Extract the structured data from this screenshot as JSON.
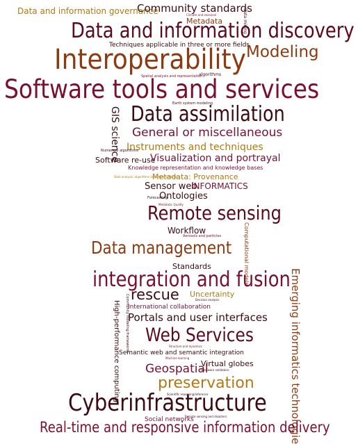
{
  "colors": {
    "dark": "#3b0a12",
    "maroon": "#7a1030",
    "brown": "#8c3a10",
    "gold": "#b07a12",
    "darkred": "#5a0a1c"
  },
  "words": [
    {
      "text": "Data and information governance",
      "color": "#b07a12"
    },
    {
      "text": "Community standards",
      "color": "#3b0a12"
    },
    {
      "text": "Metadata",
      "color": "#8c3a10"
    },
    {
      "text": "Data and information discovery",
      "color": "#5a0a1c"
    },
    {
      "text": "Techniques applicable in three or more fields",
      "color": "#3b0a12"
    },
    {
      "text": "Interoperability",
      "color": "#8c3a10"
    },
    {
      "text": "Modeling",
      "color": "#8c3a10"
    },
    {
      "text": "Software tools and services",
      "color": "#7a1030"
    },
    {
      "text": "Data assimilation",
      "color": "#3b0a12"
    },
    {
      "text": "GIS science",
      "color": "#3b0a12"
    },
    {
      "text": "General or miscellaneous",
      "color": "#7a1030"
    },
    {
      "text": "Instruments and techniques",
      "color": "#b07a12"
    },
    {
      "text": "Software re-use",
      "color": "#3b0a12"
    },
    {
      "text": "Visualization and portrayal",
      "color": "#7a1030"
    },
    {
      "text": "Knowledge representation and knowledge bases",
      "color": "#7a1030"
    },
    {
      "text": "Metadata: Provenance",
      "color": "#b07a12"
    },
    {
      "text": "Sensor web",
      "color": "#3b0a12"
    },
    {
      "text": "INFORMATICS",
      "color": "#7a1030"
    },
    {
      "text": "Ontologies",
      "color": "#3b0a12"
    },
    {
      "text": "Remote sensing",
      "color": "#5a0a1c"
    },
    {
      "text": "Workflow",
      "color": "#3b0a12"
    },
    {
      "text": "Computational models",
      "color": "#8c3a10"
    },
    {
      "text": "Data management",
      "color": "#8c3a10"
    },
    {
      "text": "Standards",
      "color": "#3b0a12"
    },
    {
      "text": "integration and fusion",
      "color": "#7a1030"
    },
    {
      "text": "Emerging informatics technologies",
      "color": "#8c3a10"
    },
    {
      "text": "rescue",
      "color": "#3b0a12"
    },
    {
      "text": "Uncertainty",
      "color": "#b07a12"
    },
    {
      "text": "International collaboration",
      "color": "#7a1030"
    },
    {
      "text": "High-performance computing",
      "color": "#3b0a12"
    },
    {
      "text": "Portals and user interfaces",
      "color": "#3b0a12"
    },
    {
      "text": "Web Services",
      "color": "#5a0a1c"
    },
    {
      "text": "Semantic web and semantic integration",
      "color": "#3b0a12"
    },
    {
      "text": "Geospatial",
      "color": "#7a1030"
    },
    {
      "text": "Virtual globes",
      "color": "#3b0a12"
    },
    {
      "text": "preservation",
      "color": "#b07a12"
    },
    {
      "text": "Cyberinfrastructure",
      "color": "#3b0a12"
    },
    {
      "text": "Social networks",
      "color": "#7a1030"
    },
    {
      "text": "Real-time and responsive information delivery",
      "color": "#7a1030"
    },
    {
      "text": "Data mining",
      "color": "#3b0a12"
    },
    {
      "text": "Spatial analysis and representation",
      "color": "#7a1030"
    },
    {
      "text": "algorithms",
      "color": "#3b0a12"
    },
    {
      "text": "Earth system modeling",
      "color": "#3b0a12"
    },
    {
      "text": "Numerical algorithms",
      "color": "#3b0a12"
    },
    {
      "text": "Forecasting",
      "color": "#3b0a12"
    },
    {
      "text": "Metadata: Quality",
      "color": "#7a1030"
    },
    {
      "text": "Aerosols and particles",
      "color": "#7a1030"
    },
    {
      "text": "Community modeling frameworks",
      "color": "#3b0a12"
    },
    {
      "text": "Machine learning",
      "color": "#7a1030"
    },
    {
      "text": "Scientific reasoning/inference",
      "color": "#3b0a12"
    },
    {
      "text": "Decision analysis",
      "color": "#3b0a12"
    },
    {
      "text": "Structure and dynamics",
      "color": "#7a1030"
    },
    {
      "text": "Hardware validators",
      "color": "#3b0a12"
    },
    {
      "text": "Data analysis: algorithms and implementation",
      "color": "#b07a12"
    },
    {
      "text": "Climate and seasonal",
      "color": "#7a1030"
    },
    {
      "text": "Remote sensing and disasters",
      "color": "#3b0a12"
    }
  ]
}
